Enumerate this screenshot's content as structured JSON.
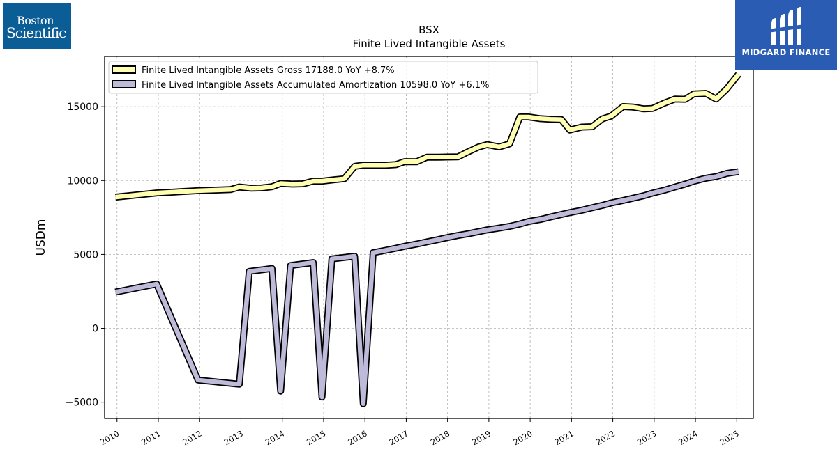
{
  "logos": {
    "left": {
      "line1": "Boston",
      "line2": "Scientific"
    },
    "right": {
      "name": "MIDGARD FINANCE"
    }
  },
  "chart_data": {
    "type": "line",
    "title": "BSX",
    "subtitle": "Finite Lived Intangible Assets",
    "ylabel": "USDm",
    "xlabel": "",
    "xlim": [
      2009.7,
      2025.4
    ],
    "ylim": [
      -6100,
      18400
    ],
    "x_ticks": [
      2010,
      2011,
      2012,
      2013,
      2014,
      2015,
      2016,
      2017,
      2018,
      2019,
      2020,
      2021,
      2022,
      2023,
      2024,
      2025
    ],
    "y_ticks": [
      -5000,
      0,
      5000,
      10000,
      15000
    ],
    "grid": true,
    "legend_position": "upper-left",
    "series": [
      {
        "name": "Finite Lived Intangible Assets Gross",
        "legend": "Finite Lived Intangible Assets Gross  17188.0 YoY +8.7%",
        "color": "#ffffb3",
        "points": [
          [
            2009.96,
            8880
          ],
          [
            2010.96,
            9160
          ],
          [
            2011.96,
            9310
          ],
          [
            2012.75,
            9390
          ],
          [
            2012.96,
            9560
          ],
          [
            2013.25,
            9480
          ],
          [
            2013.5,
            9500
          ],
          [
            2013.75,
            9580
          ],
          [
            2013.96,
            9800
          ],
          [
            2014.25,
            9760
          ],
          [
            2014.5,
            9780
          ],
          [
            2014.75,
            9960
          ],
          [
            2014.96,
            9960
          ],
          [
            2015.25,
            10050
          ],
          [
            2015.5,
            10120
          ],
          [
            2015.75,
            10960
          ],
          [
            2015.96,
            11040
          ],
          [
            2016.25,
            11040
          ],
          [
            2016.5,
            11040
          ],
          [
            2016.75,
            11080
          ],
          [
            2016.96,
            11280
          ],
          [
            2017.25,
            11270
          ],
          [
            2017.5,
            11580
          ],
          [
            2017.75,
            11580
          ],
          [
            2017.96,
            11590
          ],
          [
            2018.25,
            11600
          ],
          [
            2018.5,
            11950
          ],
          [
            2018.75,
            12270
          ],
          [
            2018.96,
            12430
          ],
          [
            2019.25,
            12280
          ],
          [
            2019.5,
            12480
          ],
          [
            2019.75,
            14300
          ],
          [
            2019.96,
            14300
          ],
          [
            2020.25,
            14190
          ],
          [
            2020.5,
            14150
          ],
          [
            2020.75,
            14130
          ],
          [
            2020.96,
            13420
          ],
          [
            2021.25,
            13620
          ],
          [
            2021.5,
            13640
          ],
          [
            2021.75,
            14180
          ],
          [
            2021.96,
            14360
          ],
          [
            2022.25,
            15010
          ],
          [
            2022.5,
            14970
          ],
          [
            2022.75,
            14850
          ],
          [
            2022.96,
            14880
          ],
          [
            2023.25,
            15250
          ],
          [
            2023.5,
            15510
          ],
          [
            2023.75,
            15500
          ],
          [
            2023.96,
            15860
          ],
          [
            2024.25,
            15900
          ],
          [
            2024.5,
            15520
          ],
          [
            2024.75,
            16180
          ],
          [
            2025.04,
            17188
          ]
        ]
      },
      {
        "name": "Finite Lived Intangible Assets Accumulated Amortization",
        "legend": "Finite Lived Intangible Assets Accumulated Amortization  10598.0 YoY +6.1%",
        "color": "#bebada",
        "points": [
          [
            2009.96,
            2450
          ],
          [
            2010.96,
            3000
          ],
          [
            2011.96,
            -3500
          ],
          [
            2012.96,
            -3780
          ],
          [
            2013.2,
            3850
          ],
          [
            2013.75,
            4050
          ],
          [
            2013.96,
            -4250
          ],
          [
            2014.2,
            4250
          ],
          [
            2014.75,
            4450
          ],
          [
            2014.96,
            -4650
          ],
          [
            2015.2,
            4700
          ],
          [
            2015.75,
            4880
          ],
          [
            2015.96,
            -5100
          ],
          [
            2016.2,
            5120
          ],
          [
            2016.5,
            5280
          ],
          [
            2016.75,
            5420
          ],
          [
            2016.96,
            5550
          ],
          [
            2017.25,
            5700
          ],
          [
            2017.5,
            5850
          ],
          [
            2017.75,
            5990
          ],
          [
            2017.96,
            6120
          ],
          [
            2018.25,
            6280
          ],
          [
            2018.5,
            6400
          ],
          [
            2018.75,
            6540
          ],
          [
            2018.96,
            6660
          ],
          [
            2019.25,
            6780
          ],
          [
            2019.5,
            6900
          ],
          [
            2019.75,
            7060
          ],
          [
            2019.96,
            7230
          ],
          [
            2020.25,
            7370
          ],
          [
            2020.5,
            7540
          ],
          [
            2020.75,
            7700
          ],
          [
            2020.96,
            7830
          ],
          [
            2021.25,
            7990
          ],
          [
            2021.5,
            8160
          ],
          [
            2021.75,
            8320
          ],
          [
            2021.96,
            8480
          ],
          [
            2022.25,
            8650
          ],
          [
            2022.5,
            8810
          ],
          [
            2022.75,
            8970
          ],
          [
            2022.96,
            9150
          ],
          [
            2023.25,
            9350
          ],
          [
            2023.5,
            9560
          ],
          [
            2023.75,
            9760
          ],
          [
            2023.96,
            9950
          ],
          [
            2024.25,
            10160
          ],
          [
            2024.5,
            10270
          ],
          [
            2024.75,
            10480
          ],
          [
            2025.04,
            10598
          ]
        ]
      }
    ]
  }
}
